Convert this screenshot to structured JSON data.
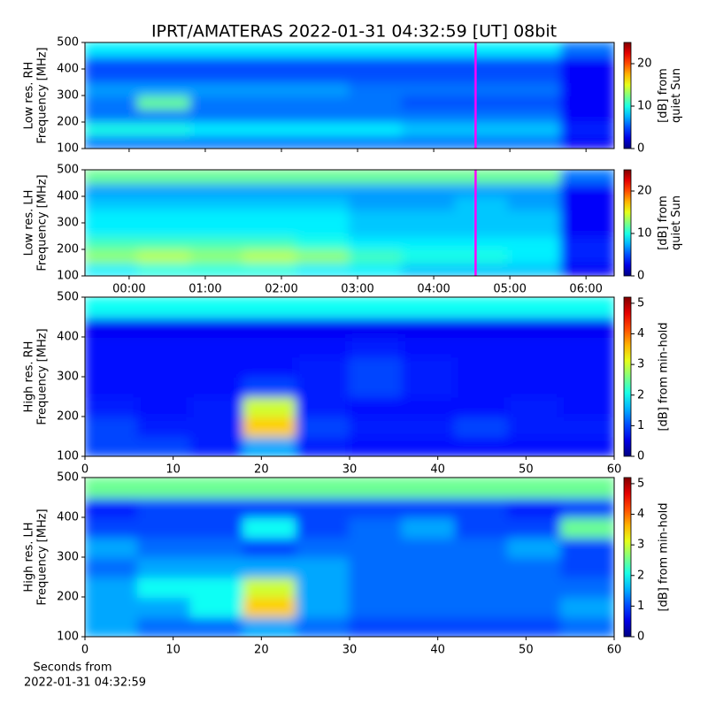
{
  "title": "IPRT/AMATERAS 2022-01-31 04:32:59 [UT]   08bit",
  "xlabel": [
    "Seconds from",
    "2022-01-31 04:32:59"
  ],
  "chart_data": [
    {
      "type": "heatmap",
      "ylabel": [
        "Low res. RH",
        "Frequency [MHz]"
      ],
      "xlim": [
        -0.58,
        6.37
      ],
      "ylim": [
        100,
        500
      ],
      "yticks": [
        100,
        200,
        300,
        400,
        500
      ],
      "marker_x": 4.55,
      "marker_color": "#ff00ff",
      "z": [
        [
          6,
          6,
          6,
          6,
          6,
          6,
          6,
          6,
          6,
          3
        ],
        [
          10,
          10,
          9,
          9,
          9,
          9,
          8,
          8,
          8,
          4
        ],
        [
          6,
          6,
          6,
          6,
          6,
          6,
          6,
          6,
          6,
          3
        ],
        [
          6,
          12,
          6,
          6,
          6,
          6,
          5,
          5,
          5,
          3
        ],
        [
          7,
          7,
          7,
          7,
          7,
          6,
          6,
          6,
          6,
          3
        ],
        [
          5,
          5,
          5,
          5,
          5,
          5,
          5,
          5,
          5,
          3
        ],
        [
          5,
          5,
          5,
          5,
          5,
          5,
          5,
          5,
          5,
          3
        ],
        [
          9,
          9,
          9,
          9,
          9,
          9,
          9,
          9,
          9,
          6
        ]
      ],
      "colorbar": {
        "label": [
          "[dB] from",
          "quiet Sun"
        ],
        "lim": [
          0,
          25
        ],
        "ticks": [
          0,
          10,
          20
        ]
      }
    },
    {
      "type": "heatmap",
      "ylabel": [
        "Low res. LH",
        "Frequency [MHz]"
      ],
      "xlim": [
        -0.58,
        6.37
      ],
      "ylim": [
        100,
        500
      ],
      "yticks": [
        100,
        200,
        300,
        400,
        500
      ],
      "xticks": [
        {
          "value": 0,
          "label": "00:00"
        },
        {
          "value": 1,
          "label": "01:00"
        },
        {
          "value": 2,
          "label": "02:00"
        },
        {
          "value": 3,
          "label": "03:00"
        },
        {
          "value": 4,
          "label": "04:00"
        },
        {
          "value": 5,
          "label": "05:00"
        },
        {
          "value": 6,
          "label": "06:00"
        }
      ],
      "marker_x": 4.55,
      "marker_color": "#ff00ff",
      "z": [
        [
          9,
          10,
          10,
          10,
          9,
          9,
          8,
          8,
          8,
          3
        ],
        [
          13,
          14,
          13,
          14,
          13,
          11,
          10,
          10,
          9,
          4
        ],
        [
          11,
          11,
          11,
          11,
          10,
          9,
          9,
          9,
          9,
          4
        ],
        [
          9,
          9,
          9,
          9,
          9,
          8,
          8,
          8,
          8,
          3
        ],
        [
          9,
          9,
          9,
          9,
          9,
          8,
          8,
          8,
          8,
          3
        ],
        [
          8,
          8,
          8,
          8,
          8,
          7,
          7,
          8,
          7,
          3
        ],
        [
          7,
          7,
          7,
          7,
          7,
          7,
          7,
          7,
          7,
          3
        ],
        [
          12,
          12,
          12,
          12,
          12,
          12,
          12,
          12,
          12,
          6
        ]
      ],
      "colorbar": {
        "label": [
          "[dB] from",
          "quiet Sun"
        ],
        "lim": [
          0,
          25
        ],
        "ticks": [
          0,
          10,
          20
        ]
      }
    },
    {
      "type": "heatmap",
      "ylabel": [
        "High res. RH",
        "Frequency [MHz]"
      ],
      "xlim": [
        0,
        60
      ],
      "ylim": [
        100,
        500
      ],
      "yticks": [
        100,
        200,
        300,
        400,
        500
      ],
      "xticks": [
        0,
        10,
        20,
        30,
        40,
        50,
        60
      ],
      "z": [
        [
          1,
          1,
          0.8,
          1.5,
          0.8,
          0.7,
          0.7,
          0.7,
          0.7,
          0.7
        ],
        [
          1,
          0.8,
          0.8,
          3.5,
          1,
          0.8,
          0.8,
          1,
          0.8,
          0.8
        ],
        [
          0.8,
          0.7,
          0.8,
          3,
          0.8,
          0.7,
          0.7,
          0.7,
          0.8,
          0.7
        ],
        [
          0.7,
          0.7,
          0.7,
          1,
          0.8,
          1,
          0.8,
          0.7,
          0.7,
          0.7
        ],
        [
          0.7,
          0.7,
          0.7,
          0.7,
          0.8,
          1,
          0.8,
          0.7,
          0.7,
          0.7
        ],
        [
          0.7,
          0.7,
          0.7,
          0.7,
          0.7,
          0.8,
          0.7,
          0.7,
          0.7,
          0.7
        ],
        [
          0.6,
          0.6,
          0.6,
          0.6,
          0.6,
          0.6,
          0.6,
          0.6,
          0.6,
          0.6
        ],
        [
          2,
          2,
          2,
          2,
          2,
          2,
          2,
          2,
          2,
          2
        ]
      ],
      "colorbar": {
        "label": [
          "[dB] from min-hold"
        ],
        "lim": [
          0,
          5.2
        ],
        "ticks": [
          0,
          1,
          2,
          3,
          4,
          5
        ]
      }
    },
    {
      "type": "heatmap",
      "ylabel": [
        "High res. LH",
        "Frequency [MHz]"
      ],
      "xlim": [
        0,
        60
      ],
      "ylim": [
        100,
        500
      ],
      "yticks": [
        100,
        200,
        300,
        400,
        500
      ],
      "xticks": [
        0,
        10,
        20,
        30,
        40,
        50,
        60
      ],
      "z": [
        [
          1.5,
          1.2,
          1.2,
          1.5,
          1.2,
          1,
          1,
          1,
          1,
          1.2
        ],
        [
          1.5,
          1.5,
          2,
          3.5,
          1.5,
          1.2,
          1.2,
          1.2,
          1.2,
          1.5
        ],
        [
          1.5,
          2,
          2,
          3,
          1.5,
          1.2,
          1.2,
          1.2,
          1.2,
          1.2
        ],
        [
          1.2,
          1.5,
          1.5,
          1.5,
          1.5,
          1.2,
          1.2,
          1.2,
          1.2,
          1
        ],
        [
          1.5,
          1.2,
          1.2,
          1,
          1.2,
          1.2,
          1.2,
          1.2,
          1.5,
          1
        ],
        [
          1,
          1,
          1,
          2,
          1,
          1.2,
          1.5,
          1,
          1,
          2.5
        ],
        [
          0.8,
          1,
          1,
          1,
          1,
          1,
          1,
          1,
          0.8,
          1
        ],
        [
          2.5,
          2.5,
          2.5,
          2.5,
          2.5,
          2.5,
          2.5,
          2.5,
          2.5,
          2.5
        ]
      ],
      "colorbar": {
        "label": [
          "[dB] from min-hold"
        ],
        "lim": [
          0,
          5.2
        ],
        "ticks": [
          0,
          1,
          2,
          3,
          4,
          5
        ]
      }
    }
  ]
}
